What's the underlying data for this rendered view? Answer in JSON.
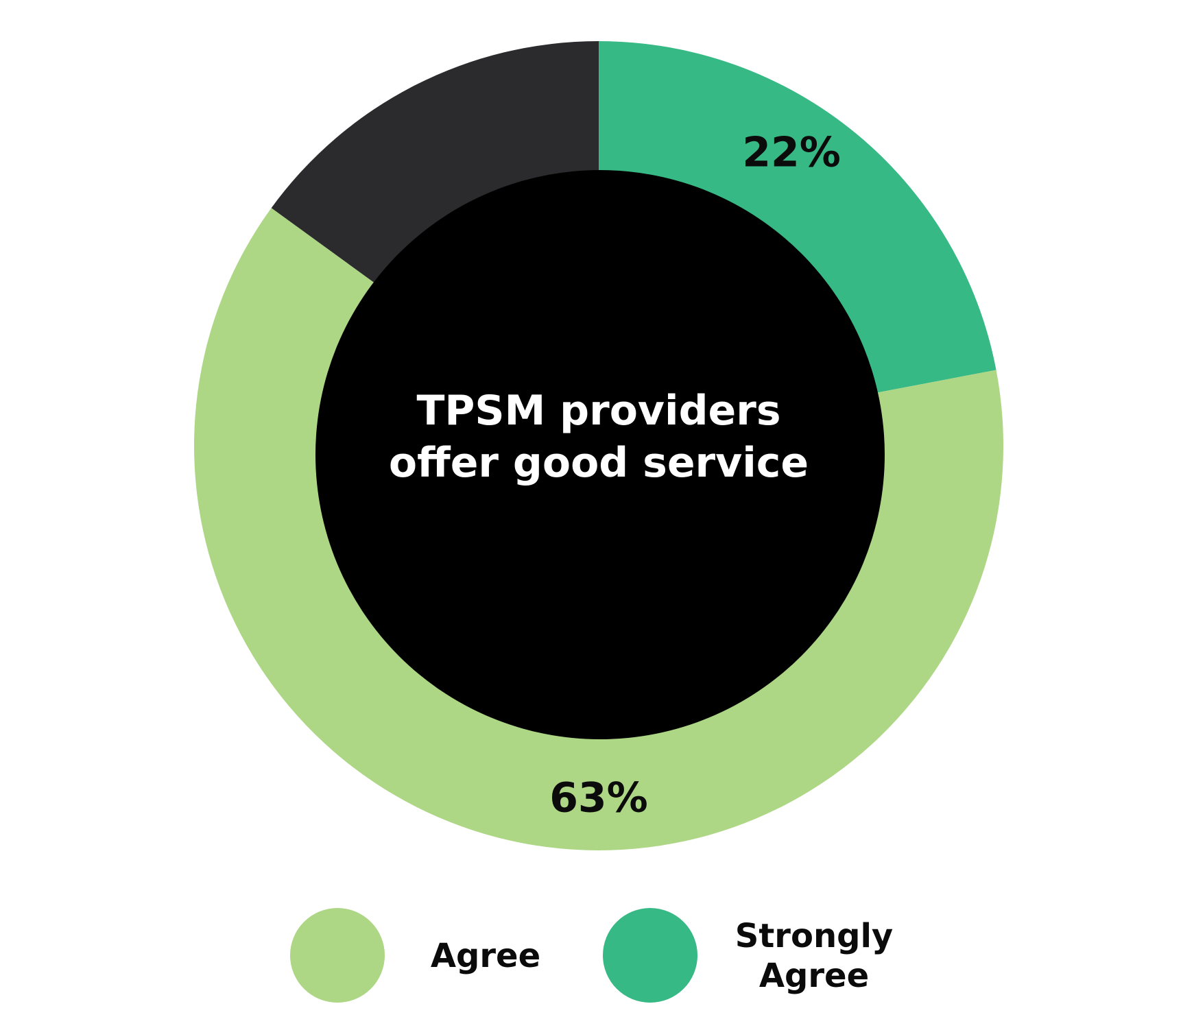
{
  "chart_data": {
    "type": "pie",
    "center_text": [
      "TPSM providers",
      "offer good service"
    ],
    "slices": [
      {
        "name": "Strongly Agree",
        "value": 22,
        "label": "22%",
        "color": "#36b984",
        "in_legend": true
      },
      {
        "name": "Agree",
        "value": 63,
        "label": "63%",
        "color": "#add685",
        "in_legend": true
      },
      {
        "name": "",
        "value": 15,
        "label": "",
        "color": "#2b2b2d",
        "in_legend": false
      }
    ],
    "legend": {
      "position": "bottom",
      "items": [
        {
          "label_lines": [
            "Agree"
          ],
          "color": "#add685"
        },
        {
          "label_lines": [
            "Strongly",
            "Agree"
          ],
          "color": "#36b984"
        }
      ]
    },
    "center_color": "#000000"
  }
}
